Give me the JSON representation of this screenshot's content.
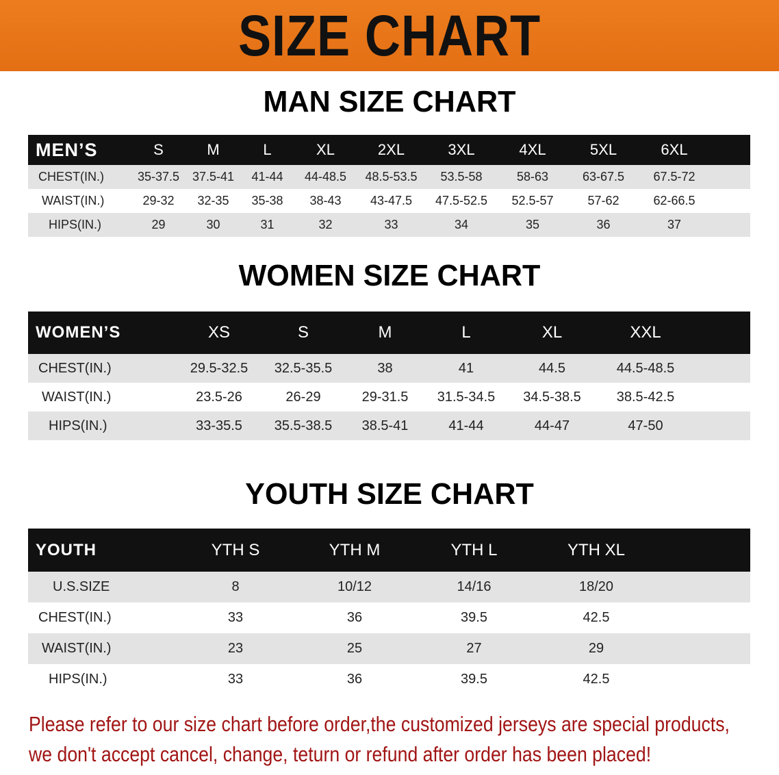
{
  "banner_title": "SIZE CHART",
  "men": {
    "title": "MAN SIZE CHART",
    "header": [
      "MEN’S",
      "S",
      "M",
      "L",
      "XL",
      "2XL",
      "3XL",
      "4XL",
      "5XL",
      "6XL"
    ],
    "rows": [
      [
        "CHEST(IN.)",
        "35-37.5",
        "37.5-41",
        "41-44",
        "44-48.5",
        "48.5-53.5",
        "53.5-58",
        "58-63",
        "63-67.5",
        "67.5-72"
      ],
      [
        "WAIST(IN.)",
        "29-32",
        "32-35",
        "35-38",
        "38-43",
        "43-47.5",
        "47.5-52.5",
        "52.5-57",
        "57-62",
        "62-66.5"
      ],
      [
        "HIPS(IN.)",
        "29",
        "30",
        "31",
        "32",
        "33",
        "34",
        "35",
        "36",
        "37"
      ]
    ]
  },
  "women": {
    "title": "WOMEN SIZE CHART",
    "header": [
      "WOMEN’S",
      "XS",
      "S",
      "M",
      "L",
      "XL",
      "XXL"
    ],
    "rows": [
      [
        "CHEST(IN.)",
        "29.5-32.5",
        "32.5-35.5",
        "38",
        "41",
        "44.5",
        "44.5-48.5"
      ],
      [
        "WAIST(IN.)",
        "23.5-26",
        "26-29",
        "29-31.5",
        "31.5-34.5",
        "34.5-38.5",
        "38.5-42.5"
      ],
      [
        "HIPS(IN.)",
        "33-35.5",
        "35.5-38.5",
        "38.5-41",
        "41-44",
        "44-47",
        "47-50"
      ]
    ]
  },
  "youth": {
    "title": "YOUTH SIZE CHART",
    "header": [
      "YOUTH",
      "YTH S",
      "YTH M",
      "YTH L",
      "YTH XL"
    ],
    "rows": [
      [
        "U.S.SIZE",
        "8",
        "10/12",
        "14/16",
        "18/20"
      ],
      [
        "CHEST(IN.)",
        "33",
        "36",
        "39.5",
        "42.5"
      ],
      [
        "WAIST(IN.)",
        "23",
        "25",
        "27",
        "29"
      ],
      [
        "HIPS(IN.)",
        "33",
        "36",
        "39.5",
        "42.5"
      ]
    ]
  },
  "notice": [
    "Please refer to our size chart before order,the customized jerseys are special products,",
    "we don't accept cancel, change, teturn or refund after order has been placed!"
  ],
  "colors": {
    "banner": "#e8761a",
    "header_bg": "#111111",
    "stripe": "#e3e3e3",
    "notice": "#a11515"
  }
}
